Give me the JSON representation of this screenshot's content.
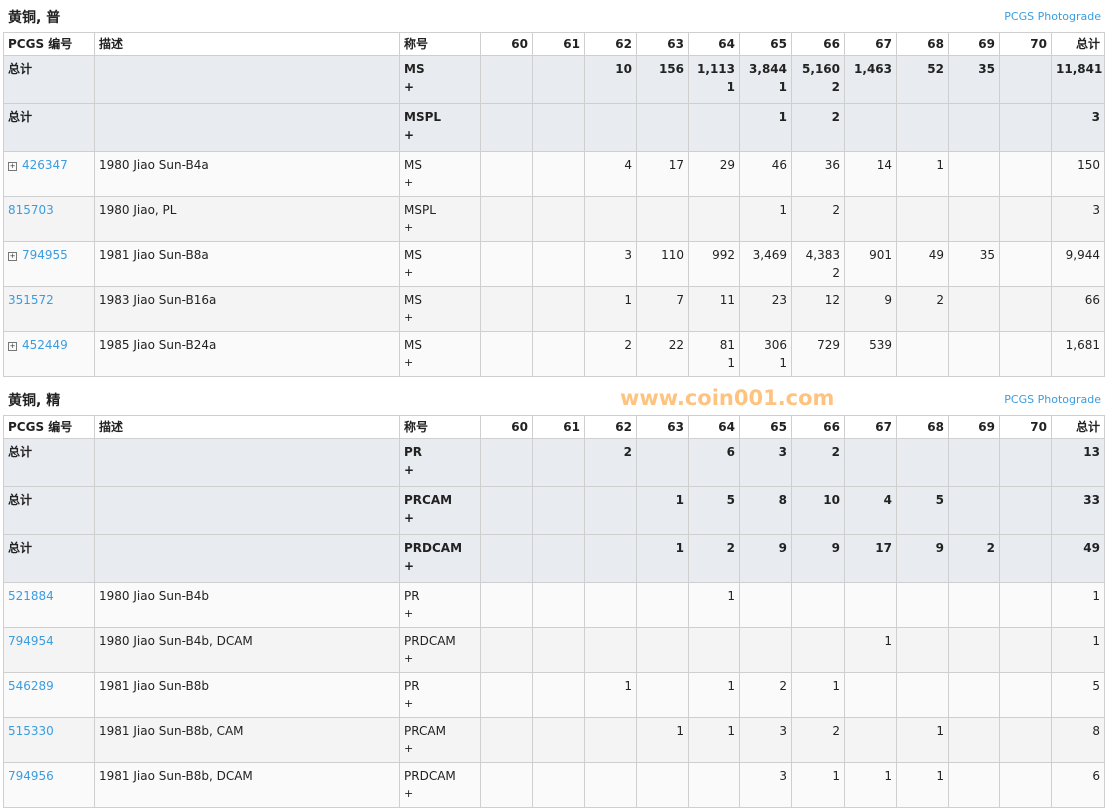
{
  "headers": [
    "PCGS 编号",
    "描述",
    "称号",
    "60",
    "61",
    "62",
    "63",
    "64",
    "65",
    "66",
    "67",
    "68",
    "69",
    "70",
    "总计"
  ],
  "photograde_label": "PCGS Photograde",
  "watermark": "www.coin001.com",
  "sections": [
    {
      "title": "黄铜, 普",
      "totals": [
        {
          "label": "总计",
          "designation": "MS",
          "plus": "+",
          "values": [
            "",
            "",
            "10",
            "156",
            "1,113",
            "3,844",
            "5,160",
            "1,463",
            "52",
            "35",
            "",
            "11,841"
          ],
          "plus_values": [
            "",
            "",
            "",
            "",
            "1",
            "1",
            "2",
            "",
            "",
            "",
            "",
            ""
          ]
        },
        {
          "label": "总计",
          "designation": "MSPL",
          "plus": "+",
          "values": [
            "",
            "",
            "",
            "",
            "",
            "1",
            "2",
            "",
            "",
            "",
            "",
            "3"
          ],
          "plus_values": [
            "",
            "",
            "",
            "",
            "",
            "",
            "",
            "",
            "",
            "",
            "",
            ""
          ]
        }
      ],
      "items": [
        {
          "pcgs": "426347",
          "expandable": true,
          "desc": "1980 Jiao Sun-B4a",
          "designation": "MS",
          "plus": "+",
          "values": [
            "",
            "",
            "4",
            "17",
            "29",
            "46",
            "36",
            "14",
            "1",
            "",
            "",
            "150"
          ],
          "plus_values": [
            "",
            "",
            "",
            "",
            "",
            "",
            "",
            "",
            "",
            "",
            "",
            ""
          ]
        },
        {
          "pcgs": "815703",
          "expandable": false,
          "desc": "1980 Jiao, PL",
          "designation": "MSPL",
          "plus": "+",
          "values": [
            "",
            "",
            "",
            "",
            "",
            "1",
            "2",
            "",
            "",
            "",
            "",
            "3"
          ],
          "plus_values": [
            "",
            "",
            "",
            "",
            "",
            "",
            "",
            "",
            "",
            "",
            "",
            ""
          ]
        },
        {
          "pcgs": "794955",
          "expandable": true,
          "desc": "1981 Jiao Sun-B8a",
          "designation": "MS",
          "plus": "+",
          "values": [
            "",
            "",
            "3",
            "110",
            "992",
            "3,469",
            "4,383",
            "901",
            "49",
            "35",
            "",
            "9,944"
          ],
          "plus_values": [
            "",
            "",
            "",
            "",
            "",
            "",
            "2",
            "",
            "",
            "",
            "",
            ""
          ]
        },
        {
          "pcgs": "351572",
          "expandable": false,
          "desc": "1983 Jiao Sun-B16a",
          "designation": "MS",
          "plus": "+",
          "values": [
            "",
            "",
            "1",
            "7",
            "11",
            "23",
            "12",
            "9",
            "2",
            "",
            "",
            "66"
          ],
          "plus_values": [
            "",
            "",
            "",
            "",
            "",
            "",
            "",
            "",
            "",
            "",
            "",
            ""
          ]
        },
        {
          "pcgs": "452449",
          "expandable": true,
          "desc": "1985 Jiao Sun-B24a",
          "designation": "MS",
          "plus": "+",
          "values": [
            "",
            "",
            "2",
            "22",
            "81",
            "306",
            "729",
            "539",
            "",
            "",
            "",
            "1,681"
          ],
          "plus_values": [
            "",
            "",
            "",
            "",
            "1",
            "1",
            "",
            "",
            "",
            "",
            "",
            ""
          ]
        }
      ]
    },
    {
      "title": "黄铜, 精",
      "totals": [
        {
          "label": "总计",
          "designation": "PR",
          "plus": "+",
          "values": [
            "",
            "",
            "2",
            "",
            "6",
            "3",
            "2",
            "",
            "",
            "",
            "",
            "13"
          ],
          "plus_values": [
            "",
            "",
            "",
            "",
            "",
            "",
            "",
            "",
            "",
            "",
            "",
            ""
          ]
        },
        {
          "label": "总计",
          "designation": "PRCAM",
          "plus": "+",
          "values": [
            "",
            "",
            "",
            "1",
            "5",
            "8",
            "10",
            "4",
            "5",
            "",
            "",
            "33"
          ],
          "plus_values": [
            "",
            "",
            "",
            "",
            "",
            "",
            "",
            "",
            "",
            "",
            "",
            ""
          ]
        },
        {
          "label": "总计",
          "designation": "PRDCAM",
          "plus": "+",
          "values": [
            "",
            "",
            "",
            "1",
            "2",
            "9",
            "9",
            "17",
            "9",
            "2",
            "",
            "49"
          ],
          "plus_values": [
            "",
            "",
            "",
            "",
            "",
            "",
            "",
            "",
            "",
            "",
            "",
            ""
          ]
        }
      ],
      "items": [
        {
          "pcgs": "521884",
          "expandable": false,
          "desc": "1980 Jiao Sun-B4b",
          "designation": "PR",
          "plus": "+",
          "values": [
            "",
            "",
            "",
            "",
            "1",
            "",
            "",
            "",
            "",
            "",
            "",
            "1"
          ],
          "plus_values": [
            "",
            "",
            "",
            "",
            "",
            "",
            "",
            "",
            "",
            "",
            "",
            ""
          ]
        },
        {
          "pcgs": "794954",
          "expandable": false,
          "desc": "1980 Jiao Sun-B4b, DCAM",
          "designation": "PRDCAM",
          "plus": "+",
          "values": [
            "",
            "",
            "",
            "",
            "",
            "",
            "",
            "1",
            "",
            "",
            "",
            "1"
          ],
          "plus_values": [
            "",
            "",
            "",
            "",
            "",
            "",
            "",
            "",
            "",
            "",
            "",
            ""
          ]
        },
        {
          "pcgs": "546289",
          "expandable": false,
          "desc": "1981 Jiao Sun-B8b",
          "designation": "PR",
          "plus": "+",
          "values": [
            "",
            "",
            "1",
            "",
            "1",
            "2",
            "1",
            "",
            "",
            "",
            "",
            "5"
          ],
          "plus_values": [
            "",
            "",
            "",
            "",
            "",
            "",
            "",
            "",
            "",
            "",
            "",
            ""
          ]
        },
        {
          "pcgs": "515330",
          "expandable": false,
          "desc": "1981 Jiao Sun-B8b, CAM",
          "designation": "PRCAM",
          "plus": "+",
          "values": [
            "",
            "",
            "",
            "1",
            "1",
            "3",
            "2",
            "",
            "1",
            "",
            "",
            "8"
          ],
          "plus_values": [
            "",
            "",
            "",
            "",
            "",
            "",
            "",
            "",
            "",
            "",
            "",
            ""
          ]
        },
        {
          "pcgs": "794956",
          "expandable": false,
          "desc": "1981 Jiao Sun-B8b, DCAM",
          "designation": "PRDCAM",
          "plus": "+",
          "values": [
            "",
            "",
            "",
            "",
            "",
            "3",
            "1",
            "1",
            "1",
            "",
            "",
            "6"
          ],
          "plus_values": [
            "",
            "",
            "",
            "",
            "",
            "",
            "",
            "",
            "",
            "",
            "",
            ""
          ]
        }
      ]
    }
  ]
}
